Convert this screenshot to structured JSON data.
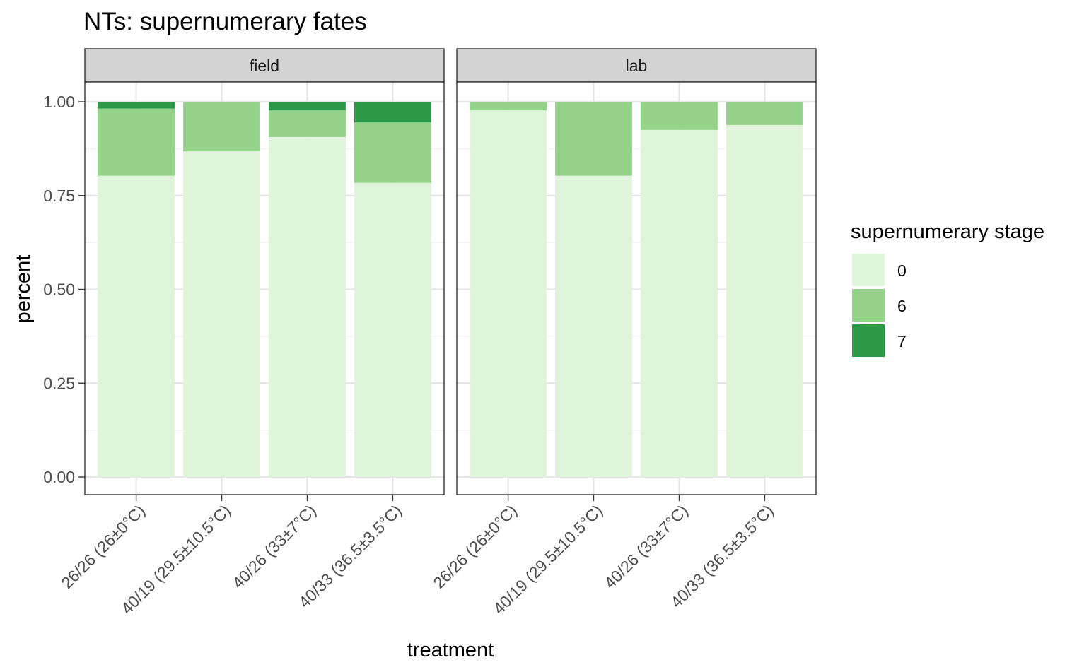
{
  "chart_data": {
    "type": "bar",
    "stacked": true,
    "title": "NTs: supernumerary fates",
    "xlabel": "treatment",
    "ylabel": "percent",
    "ylim": [
      0,
      1.05
    ],
    "yticks": [
      0,
      0.25,
      0.5,
      0.75,
      1.0
    ],
    "ytick_labels": [
      "0.00",
      "0.25",
      "0.50",
      "0.75",
      "1.00"
    ],
    "grid": true,
    "legend_position": "right",
    "legend_title": "supernumerary stage",
    "categories": [
      "26/26 (26±0°C)",
      "40/19 (29.5±10.5°C)",
      "40/26 (33±7°C)",
      "40/33 (36.5±3.5°C)"
    ],
    "series_meta": [
      {
        "name": "0",
        "color": "#e0f3db"
      },
      {
        "name": "6",
        "color": "#94d389"
      },
      {
        "name": "7",
        "color": "#2a9846"
      }
    ],
    "panels": [
      {
        "label": "field",
        "series": [
          {
            "name": "0",
            "values": [
              0.803,
              0.868,
              0.906,
              0.784
            ]
          },
          {
            "name": "6",
            "values": [
              0.179,
              0.132,
              0.071,
              0.161
            ]
          },
          {
            "name": "7",
            "values": [
              0.018,
              0.0,
              0.023,
              0.055
            ]
          }
        ]
      },
      {
        "label": "lab",
        "series": [
          {
            "name": "0",
            "values": [
              0.977,
              0.803,
              0.925,
              0.938
            ]
          },
          {
            "name": "6",
            "values": [
              0.023,
              0.197,
              0.075,
              0.062
            ]
          },
          {
            "name": "7",
            "values": [
              0.0,
              0.0,
              0.0,
              0.0
            ]
          }
        ]
      }
    ]
  }
}
